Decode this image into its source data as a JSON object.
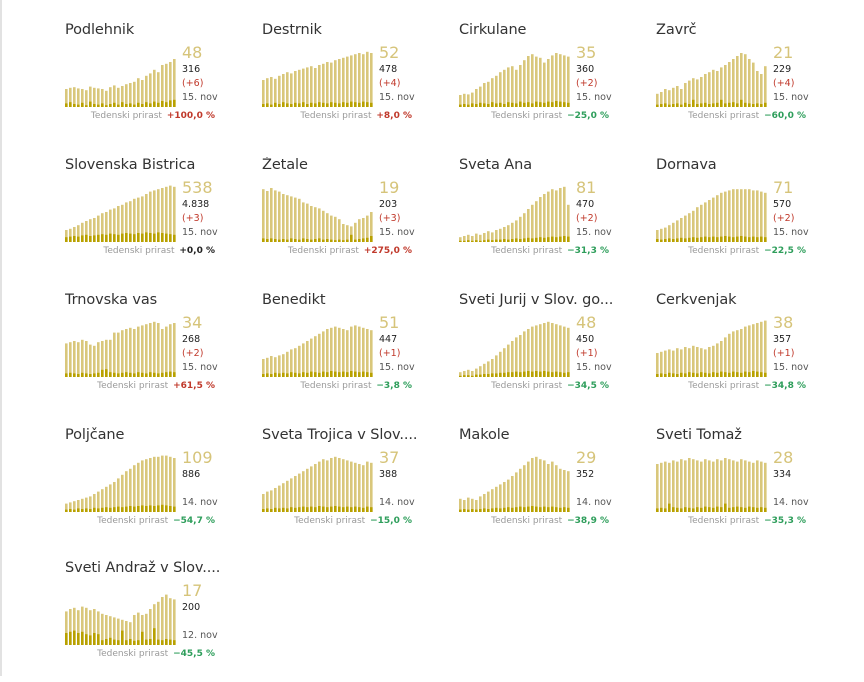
{
  "growth_label": "Tedenski prirast",
  "colors": {
    "light_bar": "#d9c77b",
    "dark_bar": "#b8a100",
    "number": "#d6c47a",
    "up": "#c0392b",
    "down": "#2e9e5b"
  },
  "chart_data": [
    {
      "type": "bar",
      "title": "Podlehnik",
      "big": "48",
      "total": "316",
      "delta": "(+6)",
      "date": "15. nov",
      "growth": "+100,0 %",
      "dir": "up",
      "values": [
        30,
        32,
        33,
        31,
        30,
        28,
        34,
        32,
        31,
        30,
        27,
        33,
        36,
        32,
        35,
        38,
        40,
        42,
        48,
        45,
        52,
        56,
        62,
        58,
        70,
        72,
        75,
        80
      ],
      "daily": [
        6,
        8,
        5,
        4,
        7,
        3,
        9,
        5,
        4,
        6,
        3,
        5,
        7,
        4,
        8,
        5,
        6,
        4,
        7,
        5,
        8,
        6,
        9,
        7,
        10,
        8,
        11,
        12
      ]
    },
    {
      "type": "bar",
      "title": "Destrnik",
      "big": "52",
      "total": "478",
      "delta": "(+4)",
      "date": "15. nov",
      "growth": "+8,0 %",
      "dir": "up",
      "values": [
        45,
        48,
        50,
        47,
        52,
        55,
        58,
        56,
        60,
        62,
        64,
        66,
        68,
        65,
        70,
        72,
        75,
        74,
        78,
        80,
        82,
        84,
        86,
        88,
        90,
        88,
        92,
        90
      ],
      "daily": [
        5,
        6,
        4,
        7,
        5,
        8,
        6,
        5,
        7,
        6,
        8,
        5,
        7,
        6,
        8,
        7,
        6,
        8,
        7,
        6,
        8,
        7,
        9,
        8,
        7,
        9,
        8,
        7
      ]
    },
    {
      "type": "bar",
      "title": "Cirkulane",
      "big": "35",
      "total": "360",
      "delta": "(+2)",
      "date": "15. nov",
      "growth": "−25,0 %",
      "dir": "down",
      "values": [
        20,
        22,
        21,
        24,
        30,
        34,
        40,
        42,
        48,
        52,
        58,
        62,
        66,
        68,
        62,
        70,
        78,
        85,
        88,
        84,
        82,
        74,
        80,
        86,
        90,
        88,
        86,
        84
      ],
      "daily": [
        4,
        5,
        4,
        6,
        5,
        7,
        6,
        5,
        8,
        6,
        7,
        5,
        8,
        7,
        6,
        9,
        7,
        8,
        6,
        9,
        8,
        7,
        9,
        8,
        10,
        9,
        8,
        7
      ]
    },
    {
      "type": "bar",
      "title": "Zavrč",
      "big": "21",
      "total": "229",
      "delta": "(+4)",
      "date": "15. nov",
      "growth": "−60,0 %",
      "dir": "down",
      "values": [
        22,
        25,
        30,
        28,
        32,
        35,
        30,
        40,
        44,
        48,
        46,
        50,
        55,
        58,
        62,
        60,
        66,
        70,
        75,
        80,
        85,
        90,
        88,
        80,
        74,
        60,
        55,
        68
      ],
      "daily": [
        4,
        5,
        6,
        4,
        5,
        6,
        4,
        7,
        5,
        12,
        5,
        6,
        7,
        5,
        6,
        7,
        12,
        6,
        7,
        8,
        6,
        12,
        7,
        6,
        5,
        6,
        5,
        7
      ]
    },
    {
      "type": "bar",
      "title": "Slovenska Bistrica",
      "big": "538",
      "total": "4.838",
      "delta": "(+3)",
      "date": "15. nov",
      "growth": "+0,0 %",
      "dir": "flat",
      "values": [
        20,
        22,
        25,
        28,
        32,
        35,
        38,
        40,
        44,
        48,
        50,
        54,
        56,
        60,
        62,
        66,
        68,
        72,
        74,
        76,
        80,
        84,
        86,
        88,
        90,
        92,
        94,
        92
      ],
      "daily": [
        8,
        9,
        10,
        9,
        11,
        12,
        10,
        11,
        12,
        13,
        12,
        14,
        13,
        12,
        14,
        15,
        14,
        13,
        15,
        14,
        16,
        15,
        14,
        16,
        15,
        14,
        13,
        12
      ]
    },
    {
      "type": "bar",
      "title": "Žetale",
      "big": "19",
      "total": "203",
      "delta": "(+3)",
      "date": "15. nov",
      "growth": "+275,0 %",
      "dir": "up",
      "values": [
        88,
        85,
        90,
        86,
        84,
        80,
        78,
        76,
        74,
        72,
        66,
        64,
        60,
        58,
        56,
        52,
        48,
        44,
        42,
        38,
        30,
        28,
        26,
        32,
        38,
        40,
        44,
        50
      ],
      "daily": [
        6,
        5,
        6,
        5,
        4,
        5,
        4,
        6,
        5,
        4,
        6,
        5,
        4,
        5,
        6,
        4,
        5,
        4,
        3,
        4,
        3,
        4,
        12,
        4,
        5,
        6,
        7,
        10
      ]
    },
    {
      "type": "bar",
      "title": "Sveta Ana",
      "big": "81",
      "total": "470",
      "delta": "(+2)",
      "date": "15. nov",
      "growth": "−31,3 %",
      "dir": "down",
      "values": [
        8,
        10,
        12,
        10,
        14,
        12,
        15,
        18,
        16,
        20,
        22,
        25,
        28,
        32,
        36,
        42,
        48,
        55,
        62,
        68,
        75,
        80,
        84,
        88,
        86,
        90,
        92,
        62
      ],
      "daily": [
        2,
        2,
        3,
        2,
        3,
        2,
        3,
        4,
        3,
        4,
        4,
        5,
        4,
        5,
        6,
        5,
        6,
        7,
        6,
        7,
        8,
        7,
        8,
        9,
        8,
        9,
        10,
        9
      ]
    },
    {
      "type": "bar",
      "title": "Dornava",
      "big": "71",
      "total": "570",
      "delta": "(+2)",
      "date": "15. nov",
      "growth": "−22,5 %",
      "dir": "down",
      "values": [
        20,
        22,
        24,
        28,
        32,
        36,
        40,
        44,
        48,
        52,
        58,
        62,
        66,
        70,
        74,
        78,
        82,
        84,
        86,
        88,
        88,
        88,
        88,
        88,
        86,
        86,
        84,
        82
      ],
      "daily": [
        5,
        4,
        5,
        6,
        5,
        6,
        7,
        6,
        7,
        8,
        7,
        8,
        9,
        8,
        9,
        8,
        9,
        10,
        9,
        8,
        9,
        10,
        9,
        8,
        9,
        8,
        9,
        8
      ]
    },
    {
      "type": "bar",
      "title": "Trnovska vas",
      "big": "34",
      "total": "268",
      "delta": "(+2)",
      "date": "15. nov",
      "growth": "+61,5 %",
      "dir": "up",
      "values": [
        56,
        58,
        60,
        58,
        62,
        60,
        54,
        52,
        58,
        60,
        62,
        62,
        74,
        74,
        78,
        80,
        82,
        80,
        84,
        86,
        88,
        90,
        92,
        90,
        80,
        84,
        88,
        90
      ],
      "daily": [
        6,
        7,
        6,
        5,
        7,
        6,
        5,
        6,
        7,
        12,
        13,
        8,
        7,
        6,
        7,
        8,
        7,
        6,
        8,
        7,
        6,
        8,
        7,
        6,
        7,
        8,
        9,
        8
      ]
    },
    {
      "type": "bar",
      "title": "Benedikt",
      "big": "51",
      "total": "447",
      "delta": "(+1)",
      "date": "15. nov",
      "growth": "−3,8 %",
      "dir": "down",
      "values": [
        30,
        32,
        35,
        33,
        36,
        38,
        42,
        46,
        48,
        52,
        56,
        60,
        64,
        68,
        72,
        76,
        80,
        82,
        84,
        82,
        80,
        78,
        84,
        86,
        84,
        82,
        80,
        78
      ],
      "daily": [
        5,
        6,
        5,
        7,
        6,
        7,
        6,
        8,
        7,
        6,
        8,
        7,
        9,
        8,
        7,
        9,
        8,
        10,
        9,
        8,
        9,
        8,
        10,
        9,
        8,
        9,
        8,
        7
      ]
    },
    {
      "type": "bar",
      "title": "Sveti Jurij v Slov. go...",
      "big": "48",
      "total": "450",
      "delta": "(+1)",
      "date": "15. nov",
      "growth": "−34,5 %",
      "dir": "down",
      "values": [
        8,
        10,
        12,
        10,
        14,
        18,
        22,
        26,
        30,
        36,
        42,
        48,
        54,
        60,
        66,
        70,
        76,
        80,
        84,
        86,
        88,
        90,
        92,
        90,
        88,
        86,
        84,
        82
      ],
      "daily": [
        2,
        3,
        3,
        2,
        4,
        4,
        5,
        5,
        6,
        6,
        7,
        7,
        8,
        8,
        9,
        8,
        9,
        10,
        9,
        10,
        9,
        10,
        9,
        8,
        9,
        8,
        7,
        8
      ]
    },
    {
      "type": "bar",
      "title": "Cerkvenjak",
      "big": "38",
      "total": "357",
      "delta": "(+1)",
      "date": "15. nov",
      "growth": "−34,8 %",
      "dir": "down",
      "values": [
        40,
        42,
        44,
        46,
        44,
        48,
        46,
        50,
        48,
        52,
        50,
        48,
        46,
        50,
        52,
        56,
        60,
        66,
        72,
        76,
        78,
        80,
        84,
        86,
        88,
        90,
        92,
        94
      ],
      "daily": [
        5,
        6,
        5,
        7,
        6,
        5,
        7,
        6,
        8,
        7,
        6,
        8,
        7,
        6,
        8,
        7,
        9,
        8,
        7,
        9,
        8,
        7,
        9,
        8,
        10,
        9,
        8,
        7
      ]
    },
    {
      "type": "bar",
      "title": "Poljčane",
      "big": "109",
      "total": "886",
      "delta": "",
      "date": "14. nov",
      "growth": "−54,7 %",
      "dir": "down",
      "values": [
        14,
        16,
        18,
        20,
        22,
        24,
        26,
        30,
        34,
        38,
        42,
        46,
        50,
        56,
        62,
        68,
        72,
        78,
        82,
        86,
        88,
        90,
        92,
        92,
        94,
        94,
        92,
        90
      ],
      "daily": [
        4,
        5,
        4,
        6,
        5,
        6,
        5,
        7,
        6,
        7,
        8,
        7,
        8,
        9,
        8,
        9,
        10,
        9,
        10,
        11,
        10,
        11,
        10,
        11,
        12,
        11,
        10,
        9
      ]
    },
    {
      "type": "bar",
      "title": "Sveta Trojica v Slov....",
      "big": "37",
      "total": "388",
      "delta": "",
      "date": "14. nov",
      "growth": "−15,0 %",
      "dir": "down",
      "values": [
        30,
        34,
        36,
        40,
        44,
        48,
        52,
        56,
        60,
        64,
        68,
        72,
        76,
        80,
        84,
        88,
        86,
        90,
        92,
        90,
        88,
        86,
        84,
        82,
        80,
        78,
        84,
        82
      ],
      "daily": [
        5,
        6,
        5,
        7,
        6,
        7,
        6,
        8,
        7,
        8,
        9,
        8,
        9,
        8,
        10,
        9,
        8,
        9,
        10,
        9,
        8,
        9,
        8,
        9,
        8,
        7,
        9,
        8
      ]
    },
    {
      "type": "bar",
      "title": "Makole",
      "big": "29",
      "total": "352",
      "delta": "",
      "date": "14. nov",
      "growth": "−38,9 %",
      "dir": "down",
      "values": [
        22,
        20,
        24,
        22,
        20,
        26,
        30,
        34,
        38,
        42,
        46,
        50,
        54,
        60,
        66,
        72,
        78,
        84,
        90,
        92,
        88,
        86,
        80,
        84,
        78,
        72,
        70,
        68
      ],
      "daily": [
        4,
        5,
        4,
        5,
        4,
        5,
        6,
        5,
        6,
        7,
        6,
        7,
        8,
        7,
        8,
        9,
        8,
        9,
        10,
        9,
        8,
        9,
        8,
        9,
        8,
        7,
        8,
        7
      ]
    },
    {
      "type": "bar",
      "title": "Sveti Tomaž",
      "big": "28",
      "total": "334",
      "delta": "",
      "date": "14. nov",
      "growth": "−35,3 %",
      "dir": "down",
      "values": [
        80,
        82,
        84,
        82,
        86,
        84,
        88,
        86,
        90,
        88,
        86,
        84,
        88,
        86,
        84,
        88,
        86,
        90,
        88,
        86,
        84,
        88,
        86,
        84,
        82,
        86,
        84,
        82
      ],
      "daily": [
        6,
        7,
        6,
        14,
        8,
        7,
        6,
        8,
        7,
        6,
        8,
        7,
        9,
        8,
        7,
        9,
        8,
        14,
        7,
        8,
        9,
        8,
        7,
        9,
        8,
        7,
        8,
        7
      ]
    },
    {
      "type": "bar",
      "title": "Sveti Andraž v Slov....",
      "big": "17",
      "total": "200",
      "delta": "",
      "date": "12. nov",
      "growth": "−45,5 %",
      "dir": "down",
      "values": [
        56,
        60,
        62,
        58,
        64,
        62,
        58,
        60,
        56,
        52,
        50,
        48,
        46,
        44,
        42,
        40,
        38,
        50,
        54,
        50,
        52,
        60,
        68,
        72,
        80,
        84,
        78,
        76
      ],
      "daily": [
        20,
        22,
        24,
        20,
        22,
        18,
        16,
        20,
        18,
        8,
        10,
        12,
        9,
        8,
        24,
        8,
        10,
        7,
        8,
        22,
        9,
        10,
        28,
        9,
        8,
        10,
        9,
        8
      ]
    }
  ]
}
